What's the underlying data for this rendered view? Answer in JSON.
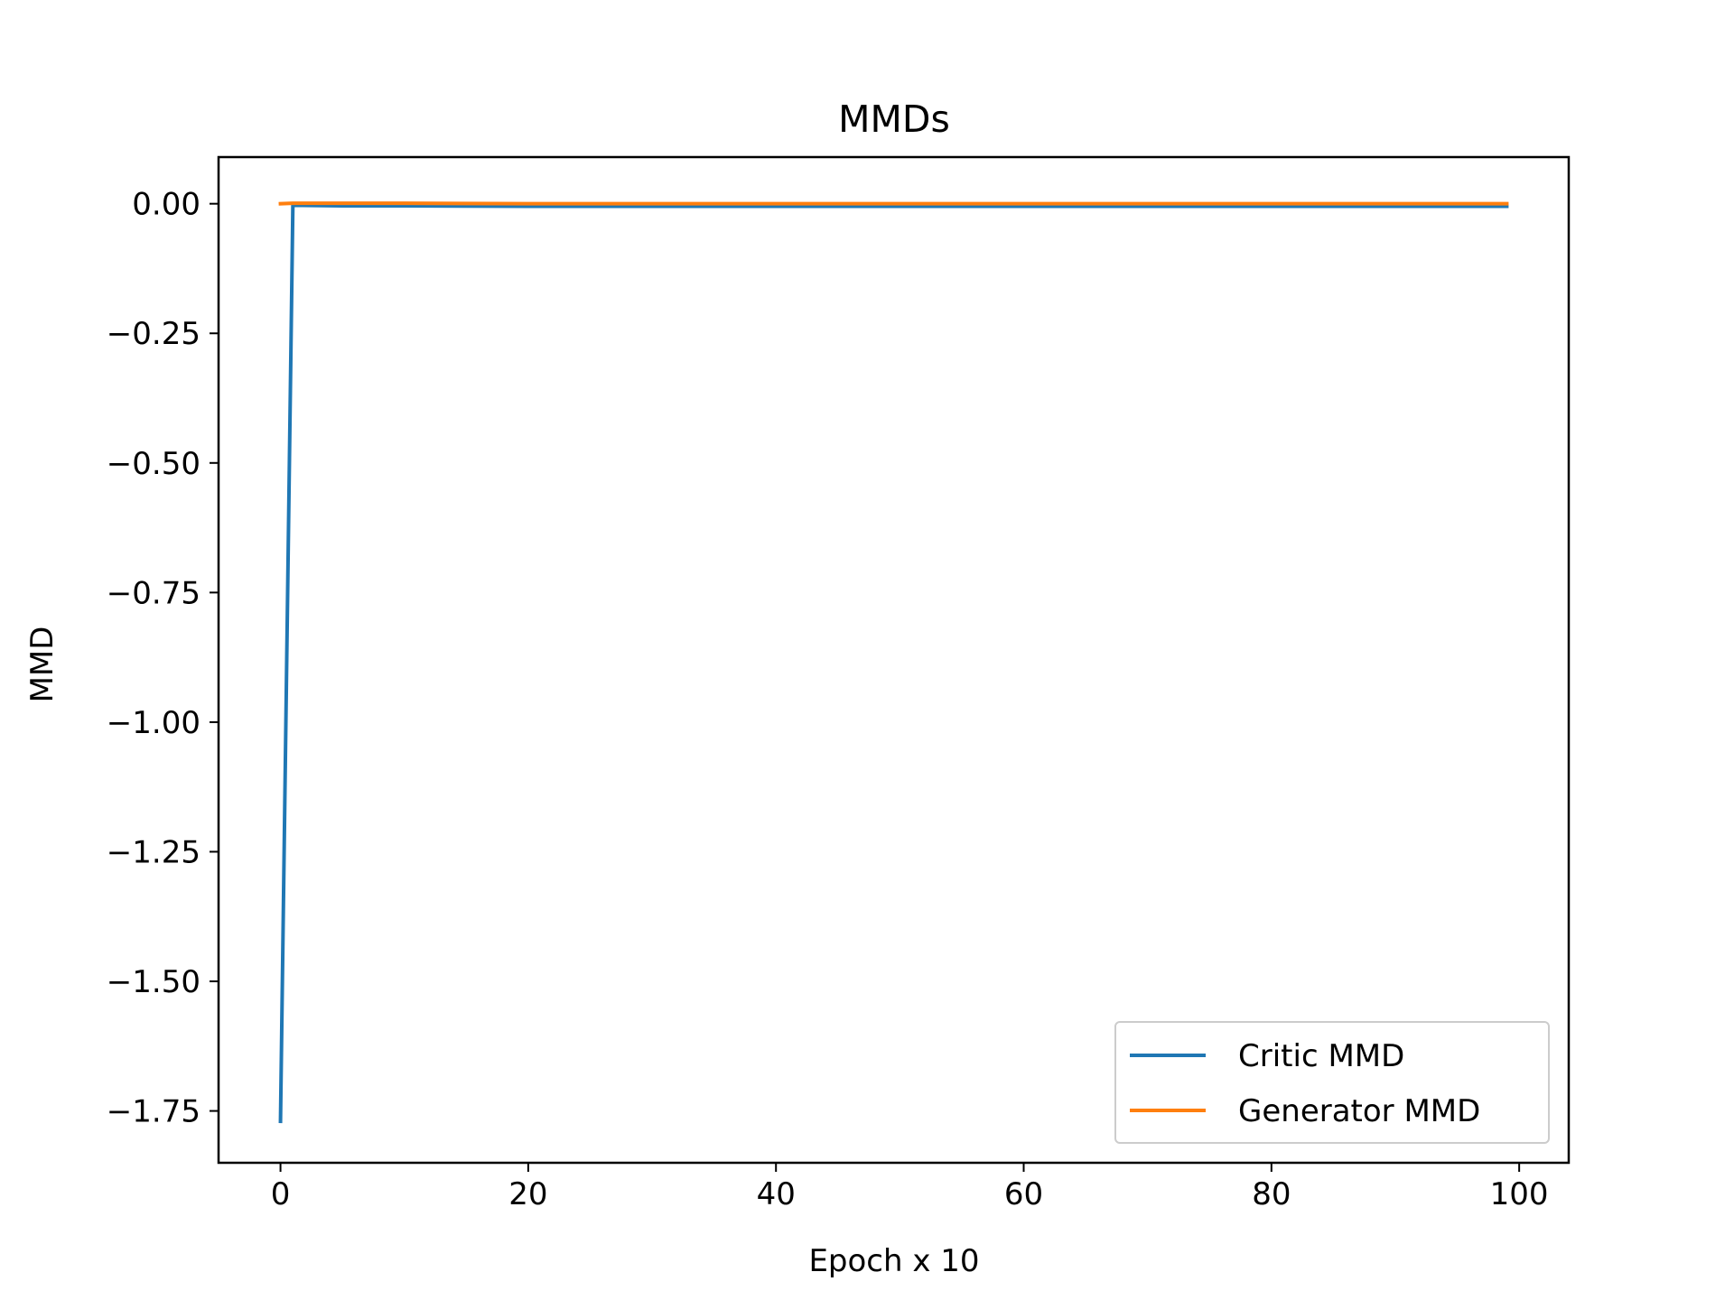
{
  "chart_data": {
    "type": "line",
    "title": "MMDs",
    "xlabel": "Epoch x 10",
    "ylabel": "MMD",
    "xlim": [
      -5,
      104
    ],
    "ylim": [
      -1.85,
      0.09
    ],
    "x_ticks": [
      0,
      20,
      40,
      60,
      80,
      100
    ],
    "x_tick_labels": [
      "0",
      "20",
      "40",
      "60",
      "80",
      "100"
    ],
    "y_ticks": [
      0.0,
      -0.25,
      -0.5,
      -0.75,
      -1.0,
      -1.25,
      -1.5,
      -1.75
    ],
    "y_tick_labels": [
      "0.00",
      "−0.25",
      "−0.50",
      "−0.75",
      "−1.00",
      "−1.25",
      "−1.50",
      "−1.75"
    ],
    "grid": false,
    "legend_position": "lower-right",
    "series": [
      {
        "name": "Critic MMD",
        "color": "#1f77b4",
        "x": [
          0,
          1,
          5,
          10,
          20,
          30,
          40,
          50,
          60,
          70,
          80,
          90,
          99
        ],
        "y": [
          -1.77,
          -0.003,
          -0.004,
          -0.004,
          -0.005,
          -0.005,
          -0.005,
          -0.005,
          -0.005,
          -0.005,
          -0.005,
          -0.005,
          -0.005
        ]
      },
      {
        "name": "Generator MMD",
        "color": "#ff7f0e",
        "x": [
          0,
          1,
          5,
          10,
          20,
          30,
          40,
          50,
          60,
          70,
          80,
          90,
          99
        ],
        "y": [
          0.0,
          0.001,
          0.001,
          0.001,
          0.0,
          0.0,
          0.0,
          0.0,
          0.0,
          0.0,
          0.0,
          0.0,
          0.0
        ]
      }
    ]
  }
}
